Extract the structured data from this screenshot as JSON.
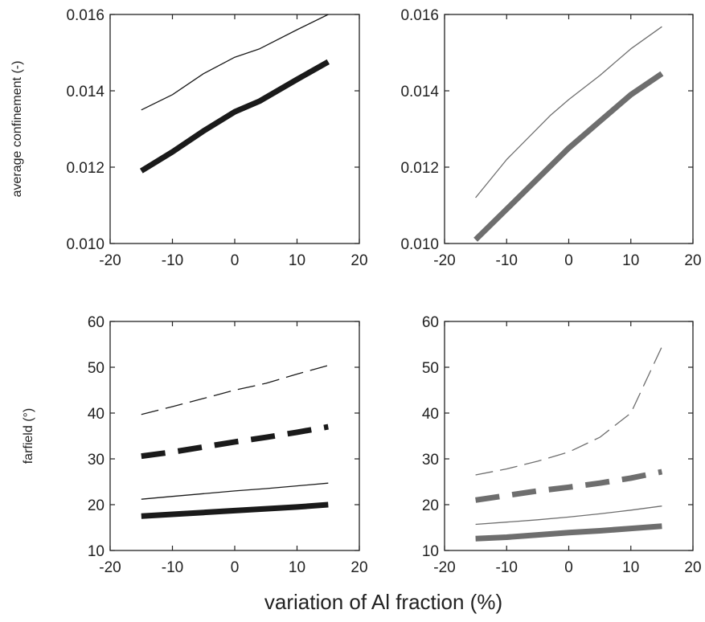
{
  "figure": {
    "xlabel": "variation of Al fraction  (%)"
  },
  "colors": {
    "black": "#1a1a1a",
    "gray": "#6e6e6e",
    "frame": "#222222"
  },
  "chart_data": [
    {
      "type": "line",
      "ylabel": "average confinement (-)",
      "xlim": [
        -20,
        20
      ],
      "ylim": [
        0.01,
        0.016
      ],
      "xticks": [
        "-20",
        "-10",
        "0",
        "10",
        "20"
      ],
      "yticks": [
        "0.010",
        "0.012",
        "0.014",
        "0.016"
      ],
      "series": [
        {
          "color": "black",
          "width": "thin",
          "dash": "solid",
          "x": [
            -15,
            -10,
            -5,
            0,
            4,
            10,
            15
          ],
          "y": [
            0.0135,
            0.0139,
            0.01445,
            0.01488,
            0.0151,
            0.0156,
            0.016
          ]
        },
        {
          "color": "black",
          "width": "thick",
          "dash": "solid",
          "x": [
            -15,
            -10,
            -5,
            0,
            4,
            10,
            15
          ],
          "y": [
            0.0119,
            0.0124,
            0.01295,
            0.01345,
            0.01373,
            0.0143,
            0.01476
          ]
        }
      ]
    },
    {
      "type": "line",
      "ylabel": "",
      "xlim": [
        -20,
        20
      ],
      "ylim": [
        0.01,
        0.016
      ],
      "xticks": [
        "-20",
        "-10",
        "0",
        "10",
        "20"
      ],
      "yticks": [
        "0.010",
        "0.012",
        "0.014",
        "0.016"
      ],
      "series": [
        {
          "color": "gray",
          "width": "thin",
          "dash": "solid",
          "x": [
            -15,
            -10,
            -3,
            0,
            5,
            10,
            15
          ],
          "y": [
            0.0112,
            0.0122,
            0.01335,
            0.01377,
            0.0144,
            0.0151,
            0.01568
          ]
        },
        {
          "color": "gray",
          "width": "thick",
          "dash": "solid",
          "x": [
            -15,
            -10,
            -5,
            0,
            5,
            10,
            15
          ],
          "y": [
            0.0101,
            0.0109,
            0.0117,
            0.0125,
            0.0132,
            0.0139,
            0.01445
          ]
        }
      ]
    },
    {
      "type": "line",
      "ylabel": "farfield (°)",
      "xlim": [
        -20,
        20
      ],
      "ylim": [
        10,
        60
      ],
      "xticks": [
        "-20",
        "-10",
        "0",
        "10",
        "20"
      ],
      "yticks": [
        "10",
        "20",
        "30",
        "40",
        "50",
        "60"
      ],
      "series": [
        {
          "color": "black",
          "width": "thin",
          "dash": "dashed",
          "x": [
            -15,
            -10,
            -5,
            0,
            5,
            10,
            15
          ],
          "y": [
            39.7,
            41.4,
            43.2,
            45.0,
            46.5,
            48.5,
            50.4
          ]
        },
        {
          "color": "black",
          "width": "thick",
          "dash": "dashed",
          "x": [
            -15,
            -10,
            -5,
            0,
            5,
            10,
            15
          ],
          "y": [
            30.6,
            31.5,
            32.6,
            33.7,
            34.7,
            35.8,
            37.0
          ]
        },
        {
          "color": "black",
          "width": "thin",
          "dash": "solid",
          "x": [
            -15,
            -10,
            -5,
            0,
            5,
            10,
            15
          ],
          "y": [
            21.2,
            21.8,
            22.4,
            23.0,
            23.5,
            24.1,
            24.7
          ]
        },
        {
          "color": "black",
          "width": "thick",
          "dash": "solid",
          "x": [
            -15,
            -10,
            -5,
            0,
            5,
            10,
            15
          ],
          "y": [
            17.5,
            17.9,
            18.3,
            18.7,
            19.1,
            19.5,
            20.0
          ]
        }
      ]
    },
    {
      "type": "line",
      "ylabel": "",
      "xlim": [
        -20,
        20
      ],
      "ylim": [
        10,
        60
      ],
      "xticks": [
        "-20",
        "-10",
        "0",
        "10",
        "20"
      ],
      "yticks": [
        "10",
        "20",
        "30",
        "40",
        "50",
        "60"
      ],
      "series": [
        {
          "color": "gray",
          "width": "thin",
          "dash": "dashed",
          "x": [
            -15,
            -10,
            -5,
            0,
            5,
            10,
            15
          ],
          "y": [
            26.5,
            27.8,
            29.5,
            31.5,
            34.7,
            40.0,
            54.5
          ]
        },
        {
          "color": "gray",
          "width": "thick",
          "dash": "dashed",
          "x": [
            -15,
            -10,
            -5,
            0,
            5,
            10,
            15
          ],
          "y": [
            21.0,
            22.0,
            23.0,
            23.8,
            24.7,
            25.8,
            27.2
          ]
        },
        {
          "color": "gray",
          "width": "thin",
          "dash": "solid",
          "x": [
            -15,
            -10,
            -5,
            0,
            5,
            10,
            15
          ],
          "y": [
            15.7,
            16.2,
            16.7,
            17.3,
            18.0,
            18.8,
            19.7
          ]
        },
        {
          "color": "gray",
          "width": "thick",
          "dash": "solid",
          "x": [
            -15,
            -10,
            -5,
            0,
            5,
            10,
            15
          ],
          "y": [
            12.6,
            12.9,
            13.4,
            13.9,
            14.3,
            14.8,
            15.3
          ]
        }
      ]
    }
  ]
}
